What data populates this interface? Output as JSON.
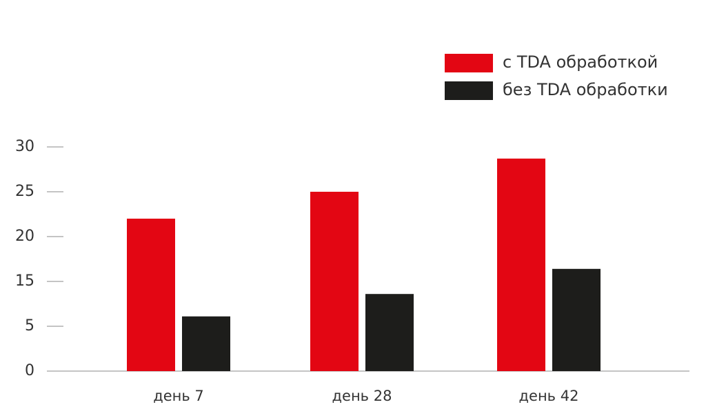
{
  "chart_data": {
    "type": "bar",
    "categories": [
      "день 7",
      "день 28",
      "день 42"
    ],
    "series": [
      {
        "name": "с TDA обработкой",
        "color": "#e30613",
        "values": [
          22,
          25,
          28.7
        ]
      },
      {
        "name": "без TDA обработки",
        "color": "#1d1d1b",
        "values": [
          7.2,
          12.2,
          16.4
        ]
      }
    ],
    "ylim": [
      0,
      30
    ],
    "yticks": [
      0,
      5,
      15,
      20,
      25,
      30
    ]
  }
}
